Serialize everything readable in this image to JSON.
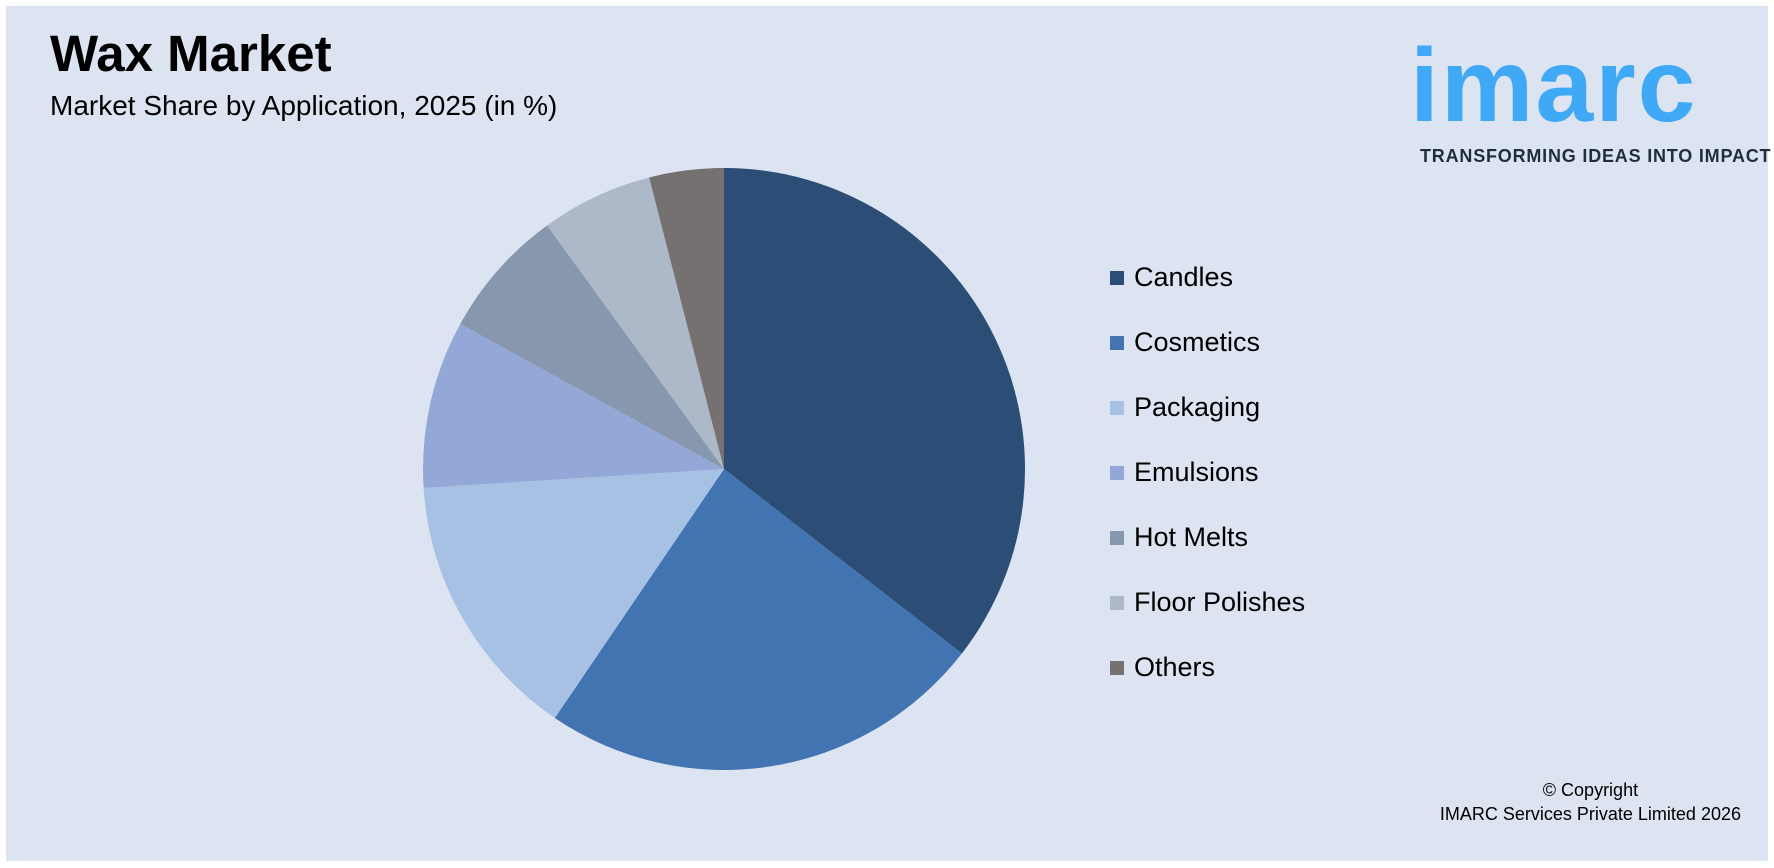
{
  "header": {
    "title": "Wax Market",
    "subtitle": "Market Share by Application, 2025 (in %)"
  },
  "logo": {
    "word": "imarc",
    "tagline": "TRANSFORMING IDEAS INTO IMPACT",
    "color": "#3fa9f5"
  },
  "chart_data": {
    "type": "pie",
    "title": "Wax Market",
    "subtitle": "Market Share by Application, 2025 (in %)",
    "legend_position": "right",
    "categories": [
      "Candles",
      "Cosmetics",
      "Packaging",
      "Emulsions",
      "Hot Melts",
      "Floor Polishes",
      "Others"
    ],
    "values": [
      35.5,
      24.0,
      14.5,
      9.0,
      7.0,
      6.0,
      4.0
    ],
    "colors": [
      "#2c4d75",
      "#4174b0",
      "#a6c1e3",
      "#94a8d8",
      "#8797ae",
      "#adb8c8",
      "#757171"
    ]
  },
  "copyright": {
    "line1": "© Copyright",
    "line2": "IMARC Services Private Limited 2026"
  }
}
